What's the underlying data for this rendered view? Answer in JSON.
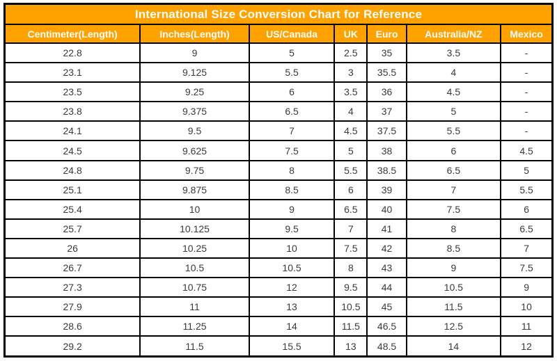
{
  "title": "International Size Conversion Chart for Reference",
  "table": {
    "headers": [
      "Centimeter(Length)",
      "Inches(Length)",
      "US/Canada",
      "UK",
      "Euro",
      "Australia/NZ",
      "Mexico"
    ],
    "rows": [
      [
        "22.8",
        "9",
        "5",
        "2.5",
        "35",
        "3.5",
        "-"
      ],
      [
        "23.1",
        "9.125",
        "5.5",
        "3",
        "35.5",
        "4",
        "-"
      ],
      [
        "23.5",
        "9.25",
        "6",
        "3.5",
        "36",
        "4.5",
        "-"
      ],
      [
        "23.8",
        "9.375",
        "6.5",
        "4",
        "37",
        "5",
        "-"
      ],
      [
        "24.1",
        "9.5",
        "7",
        "4.5",
        "37.5",
        "5.5",
        "-"
      ],
      [
        "24.5",
        "9.625",
        "7.5",
        "5",
        "38",
        "6",
        "4.5"
      ],
      [
        "24.8",
        "9.75",
        "8",
        "5.5",
        "38.5",
        "6.5",
        "5"
      ],
      [
        "25.1",
        "9.875",
        "8.5",
        "6",
        "39",
        "7",
        "5.5"
      ],
      [
        "25.4",
        "10",
        "9",
        "6.5",
        "40",
        "7.5",
        "6"
      ],
      [
        "25.7",
        "10.125",
        "9.5",
        "7",
        "41",
        "8",
        "6.5"
      ],
      [
        "26",
        "10.25",
        "10",
        "7.5",
        "42",
        "8.5",
        "7"
      ],
      [
        "26.7",
        "10.5",
        "10.5",
        "8",
        "43",
        "9",
        "7.5"
      ],
      [
        "27.3",
        "10.75",
        "12",
        "9.5",
        "44",
        "10.5",
        "9"
      ],
      [
        "27.9",
        "11",
        "13",
        "10.5",
        "45",
        "11.5",
        "10"
      ],
      [
        "28.6",
        "11.25",
        "14",
        "11.5",
        "46.5",
        "12.5",
        "11"
      ],
      [
        "29.2",
        "11.5",
        "15.5",
        "13",
        "48.5",
        "14",
        "12"
      ]
    ]
  },
  "colors": {
    "header_bg": "#FFA200",
    "header_text": "#FFFFFF",
    "border": "#000000",
    "cell_text": "#3A3A3A",
    "page_bg": "#FFFFFF"
  },
  "chart_data": {
    "type": "table",
    "title": "International Size Conversion Chart for Reference",
    "columns": [
      "Centimeter(Length)",
      "Inches(Length)",
      "US/Canada",
      "UK",
      "Euro",
      "Australia/NZ",
      "Mexico"
    ],
    "rows": [
      [
        22.8,
        9,
        5,
        2.5,
        35,
        3.5,
        null
      ],
      [
        23.1,
        9.125,
        5.5,
        3,
        35.5,
        4,
        null
      ],
      [
        23.5,
        9.25,
        6,
        3.5,
        36,
        4.5,
        null
      ],
      [
        23.8,
        9.375,
        6.5,
        4,
        37,
        5,
        null
      ],
      [
        24.1,
        9.5,
        7,
        4.5,
        37.5,
        5.5,
        null
      ],
      [
        24.5,
        9.625,
        7.5,
        5,
        38,
        6,
        4.5
      ],
      [
        24.8,
        9.75,
        8,
        5.5,
        38.5,
        6.5,
        5
      ],
      [
        25.1,
        9.875,
        8.5,
        6,
        39,
        7,
        5.5
      ],
      [
        25.4,
        10,
        9,
        6.5,
        40,
        7.5,
        6
      ],
      [
        25.7,
        10.125,
        9.5,
        7,
        41,
        8,
        6.5
      ],
      [
        26,
        10.25,
        10,
        7.5,
        42,
        8.5,
        7
      ],
      [
        26.7,
        10.5,
        10.5,
        8,
        43,
        9,
        7.5
      ],
      [
        27.3,
        10.75,
        12,
        9.5,
        44,
        10.5,
        9
      ],
      [
        27.9,
        11,
        13,
        10.5,
        45,
        11.5,
        10
      ],
      [
        28.6,
        11.25,
        14,
        11.5,
        46.5,
        12.5,
        11
      ],
      [
        29.2,
        11.5,
        15.5,
        13,
        48.5,
        14,
        12
      ]
    ],
    "missing_value_glyph": "-",
    "layout": "bordered grid, orange title and header rows, white data rows"
  }
}
